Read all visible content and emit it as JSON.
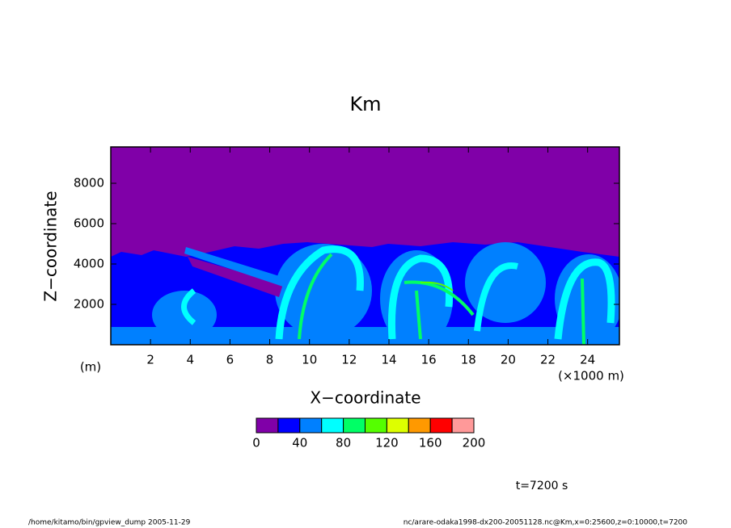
{
  "chart_data": {
    "type": "contour",
    "title": "Km",
    "x_label": "X−coordinate",
    "y_label": "Z−coordinate",
    "x_unit": "(×1000 m)",
    "y_unit": "(m)",
    "xlim": [
      0,
      25.6
    ],
    "ylim": [
      0,
      9800
    ],
    "xticks": [
      2,
      4,
      6,
      8,
      10,
      12,
      14,
      16,
      18,
      20,
      22,
      24
    ],
    "yticks": [
      2000,
      4000,
      6000,
      8000
    ],
    "colorbar": {
      "levels": [
        0,
        20,
        40,
        60,
        80,
        100,
        120,
        140,
        160,
        180,
        200
      ],
      "colors": [
        "#8000a8",
        "#0000ff",
        "#0080ff",
        "#00ffff",
        "#00ff66",
        "#55ff00",
        "#ddff00",
        "#ff9900",
        "#ff0000",
        "#ff9999"
      ],
      "ticks": [
        0,
        40,
        80,
        120,
        160,
        200
      ]
    },
    "time_label": "t=7200 s",
    "footer_left": "/home/kitamo/bin/gpview_dump  2005-11-29",
    "footer_right": "nc/arare-odaka1998-dx200-20051128.nc@Km,x=0:25600,z=0:10000,t=7200"
  }
}
